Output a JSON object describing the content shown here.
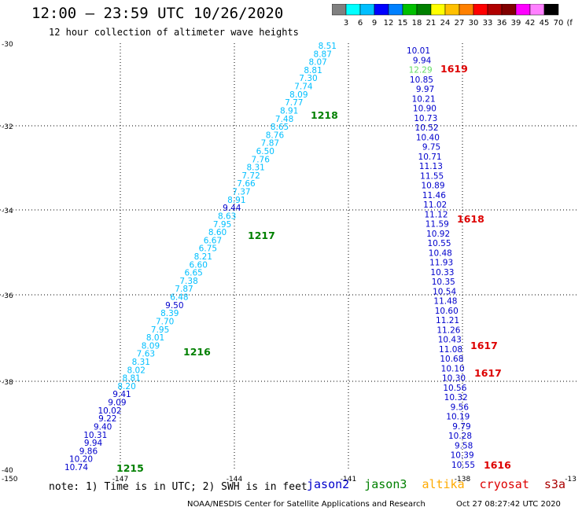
{
  "header": {
    "title": "12:00 – 23:59 UTC 10/26/2020",
    "subtitle": "12 hour collection of altimeter wave heights"
  },
  "legend": {
    "labels": [
      "3",
      "6",
      "9",
      "12",
      "15",
      "18",
      "21",
      "24",
      "27",
      "30",
      "33",
      "36",
      "39",
      "42",
      "45",
      "70",
      "(ft)"
    ],
    "colors": [
      "#808080",
      "#00ffff",
      "#00bfff",
      "#0000ff",
      "#0080ff",
      "#00c000",
      "#008000",
      "#ffff00",
      "#ffc000",
      "#ff8000",
      "#ff0000",
      "#b00000",
      "#800000",
      "#ff00ff",
      "#ff80ff",
      "#000000"
    ]
  },
  "axes": {
    "y_labels": [
      "-30",
      "-32",
      "-34",
      "-36",
      "-38",
      "-40"
    ],
    "x_labels": [
      "-150",
      "-147",
      "-144",
      "-141",
      "-138",
      "-13"
    ]
  },
  "colors": {
    "cyan": "#00bfff",
    "blue": "#0000cc",
    "green": "#008000",
    "lightgreen": "#66dd66",
    "red": "#dd0000"
  },
  "track_west": {
    "values": [
      "8.51",
      "8.87",
      "8.07",
      "8.81",
      "7.30",
      "7.74",
      "8.09",
      "7.77",
      "8.91",
      "7.48",
      "8.65",
      "8.76",
      "7.87",
      "6.50",
      "7.76",
      "8.31",
      "7.72",
      "7.66",
      "7.37",
      "8.91",
      "9.44",
      "8.63",
      "7.95",
      "8.60",
      "6.67",
      "6.75",
      "8.21",
      "6.60",
      "6.65",
      "7.38",
      "7.87",
      "6.48",
      "9.50",
      "8.39",
      "7.70",
      "7.95",
      "8.01",
      "8.09",
      "7.63",
      "8.31",
      "8.02",
      "8.81",
      "8.20",
      "9.41",
      "9.09",
      "10.02",
      "9.22",
      "9.40",
      "10.31",
      "9.94",
      "9.86",
      "10.20",
      "10.74"
    ],
    "colors": [
      "c",
      "c",
      "c",
      "c",
      "c",
      "c",
      "c",
      "c",
      "c",
      "c",
      "c",
      "c",
      "c",
      "c",
      "c",
      "c",
      "c",
      "c",
      "c",
      "c",
      "b",
      "c",
      "c",
      "c",
      "c",
      "c",
      "c",
      "c",
      "c",
      "c",
      "c",
      "c",
      "b",
      "c",
      "c",
      "c",
      "c",
      "c",
      "c",
      "c",
      "c",
      "c",
      "c",
      "b",
      "b",
      "b",
      "b",
      "b",
      "b",
      "b",
      "b",
      "b",
      "b"
    ]
  },
  "track_east": {
    "values": [
      "10.01",
      "9.94",
      "12.29",
      "10.85",
      "9.97",
      "10.21",
      "10.90",
      "10.73",
      "10.52",
      "10.40",
      "9.75",
      "10.71",
      "11.13",
      "11.55",
      "10.89",
      "11.46",
      "11.02",
      "11.12",
      "11.59",
      "10.92",
      "10.55",
      "10.48",
      "11.93",
      "10.33",
      "10.35",
      "10.54",
      "11.48",
      "10.60",
      "11.21",
      "11.26",
      "10.43",
      "11.08",
      "10.68",
      "10.10",
      "10.30",
      "10.56",
      "10.32",
      "9.56",
      "10.19",
      "9.79",
      "10.28",
      "9.58",
      "10.39",
      "10.55"
    ],
    "colors": [
      "b",
      "b",
      "g",
      "b",
      "b",
      "b",
      "b",
      "b",
      "b",
      "b",
      "b",
      "b",
      "b",
      "b",
      "b",
      "b",
      "b",
      "b",
      "b",
      "b",
      "b",
      "b",
      "b",
      "b",
      "b",
      "b",
      "b",
      "b",
      "b",
      "b",
      "b",
      "b",
      "b",
      "b",
      "b",
      "b",
      "b",
      "b",
      "b",
      "b",
      "b",
      "b",
      "b",
      "b"
    ]
  },
  "time_labels_west": [
    "1218",
    "1217",
    "1216",
    "1215"
  ],
  "time_labels_east": [
    "1619",
    "1618",
    "1617",
    "1617",
    "1616"
  ],
  "footer": {
    "note": "note: 1) Time is in UTC; 2) SWH is in feet",
    "satellites": [
      "jason2",
      "jason3",
      "altika",
      "cryosat",
      "s3a"
    ],
    "sat_colors": [
      "#0000cc",
      "#008000",
      "#ffaa00",
      "#dd0000",
      "#aa0000"
    ],
    "credit": "NOAA/NESDIS Center for Satellite Applications and Research",
    "timestamp": "Oct 27 08:27:42 UTC 2020"
  }
}
